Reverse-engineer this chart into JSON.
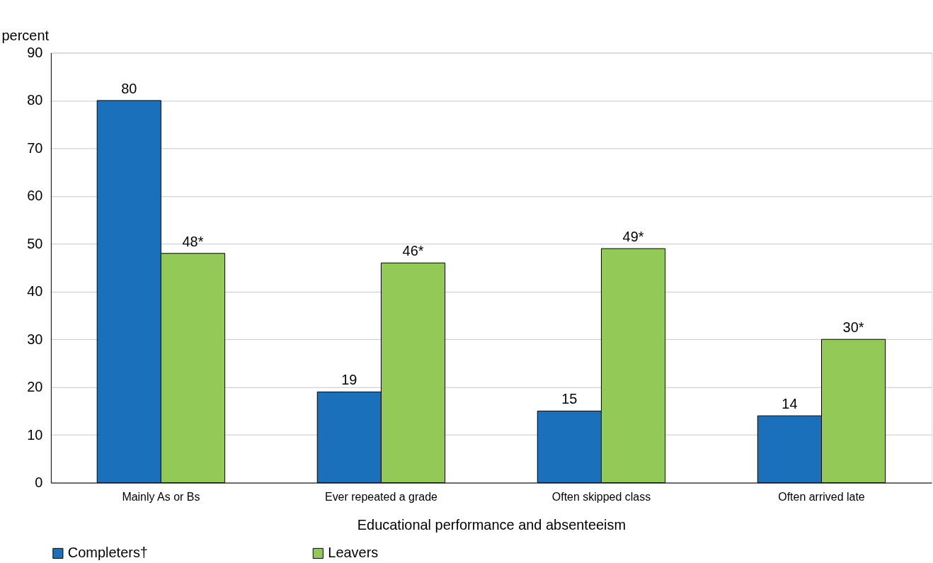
{
  "chart_data": {
    "type": "bar",
    "xlabel": "Educational performance and absenteeism",
    "ylabel": "percent",
    "categories": [
      "Mainly As or Bs",
      "Ever repeated a grade",
      "Often skipped class",
      "Often arrived late"
    ],
    "series": [
      {
        "name": "Completers†",
        "color": "#1a70ba",
        "values": [
          80,
          19,
          15,
          14
        ],
        "value_labels": [
          "80",
          "19",
          "15",
          "14"
        ]
      },
      {
        "name": "Leavers",
        "color": "#92c957",
        "values": [
          48,
          46,
          49,
          30
        ],
        "value_labels": [
          "48*",
          "46*",
          "49*",
          "30*"
        ]
      }
    ],
    "ylim": [
      0,
      90
    ],
    "yticks": [
      0,
      10,
      20,
      30,
      40,
      50,
      60,
      70,
      80,
      90
    ],
    "grid": "y",
    "legend": "bottom"
  }
}
